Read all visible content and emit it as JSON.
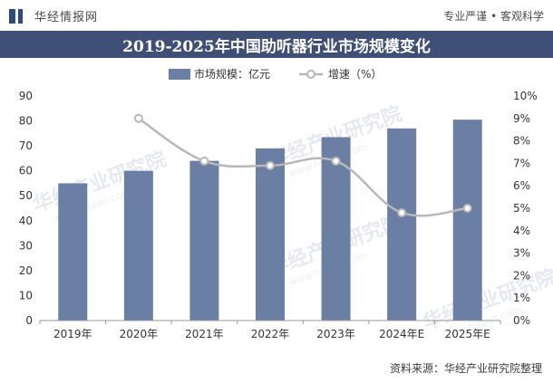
{
  "header": {
    "site_name": "华经情报网",
    "tagline": "专业严谨 • 客观科学"
  },
  "watermarks": [
    "华经产业研究院",
    "www.huaon.com"
  ],
  "footer": {
    "source": "资料来源：华经产业研究院整理"
  },
  "colors": {
    "bar": "#6b7ea3",
    "line": "#b8b8b8",
    "title_band": "#3f4f75",
    "logo": "#2e4a7d"
  },
  "chart_data": {
    "type": "bar",
    "title": "2019-2025年中国助听器行业市场规模变化",
    "categories": [
      "2019年",
      "2020年",
      "2021年",
      "2022年",
      "2023年",
      "2024年E",
      "2025年E"
    ],
    "series": [
      {
        "name": "市场规模：亿元",
        "type": "bar",
        "axis": "left",
        "values": [
          55,
          60,
          64,
          69,
          73.5,
          77,
          80.5
        ]
      },
      {
        "name": "增速（%）",
        "type": "line",
        "axis": "right",
        "values": [
          null,
          9.0,
          7.1,
          6.9,
          7.1,
          4.8,
          5.0
        ]
      }
    ],
    "ylim": [
      0,
      90
    ],
    "yticks": [
      "0",
      "10",
      "20",
      "30",
      "40",
      "50",
      "60",
      "70",
      "80",
      "90"
    ],
    "y2lim": [
      0,
      10
    ],
    "y2ticks": [
      "0%",
      "1%",
      "2%",
      "3%",
      "4%",
      "5%",
      "6%",
      "7%",
      "8%",
      "9%",
      "10%"
    ],
    "legend_position": "top-center",
    "grid": false
  }
}
